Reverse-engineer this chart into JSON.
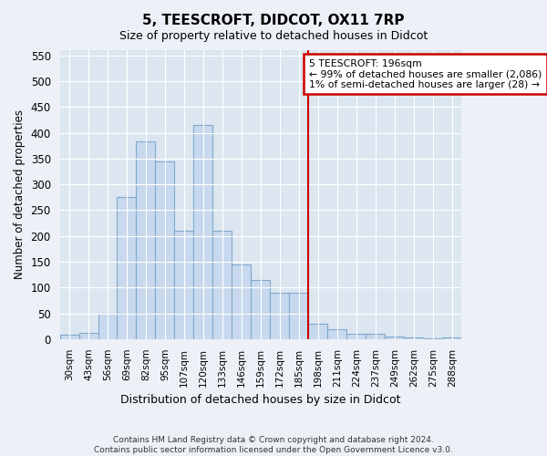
{
  "title": "5, TEESCROFT, DIDCOT, OX11 7RP",
  "subtitle": "Size of property relative to detached houses in Didcot",
  "xlabel": "Distribution of detached houses by size in Didcot",
  "ylabel": "Number of detached properties",
  "categories": [
    "30sqm",
    "43sqm",
    "56sqm",
    "69sqm",
    "82sqm",
    "95sqm",
    "107sqm",
    "120sqm",
    "133sqm",
    "146sqm",
    "159sqm",
    "172sqm",
    "185sqm",
    "198sqm",
    "211sqm",
    "224sqm",
    "237sqm",
    "249sqm",
    "262sqm",
    "275sqm",
    "288sqm"
  ],
  "values": [
    8,
    12,
    50,
    275,
    383,
    345,
    210,
    415,
    210,
    145,
    115,
    90,
    90,
    30,
    20,
    10,
    10,
    5,
    3,
    1,
    3
  ],
  "bar_color": "#c8d9ee",
  "bar_edge_color": "#7fa8cc",
  "vline_color": "#cc0000",
  "vline_x": 13.0,
  "annotation_text": "5 TEESCROFT: 196sqm\n← 99% of detached houses are smaller (2,086)\n1% of semi-detached houses are larger (28) →",
  "annotation_box_color": "#cc0000",
  "annotation_bg": "#ffffff",
  "ylim": [
    0,
    560
  ],
  "yticks": [
    0,
    50,
    100,
    150,
    200,
    250,
    300,
    350,
    400,
    450,
    500,
    550
  ],
  "footnote": "Contains HM Land Registry data © Crown copyright and database right 2024.\nContains public sector information licensed under the Open Government Licence v3.0.",
  "bg_color": "#edf1f7",
  "plot_bg_color": "#dce6f0"
}
